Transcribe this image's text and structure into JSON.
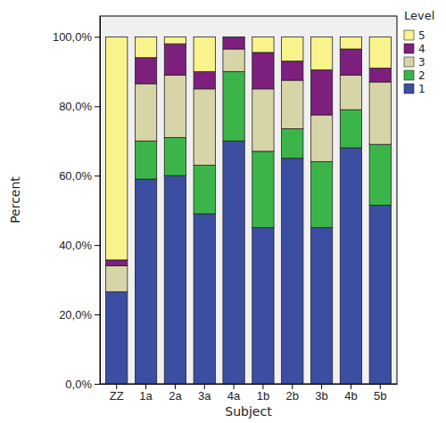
{
  "chart_data": {
    "type": "bar",
    "stacked": true,
    "x_label": "Subject",
    "y_label": "Percent",
    "legend_title": "Level",
    "legend": "right",
    "categories": [
      "ZZ",
      "1a",
      "2a",
      "3a",
      "4a",
      "1b",
      "2b",
      "3b",
      "4b",
      "5b"
    ],
    "series": [
      {
        "name": "1",
        "color": "#3b4ea1",
        "values": [
          26.5,
          59,
          60,
          49,
          70,
          45,
          65,
          45,
          68,
          51.5
        ]
      },
      {
        "name": "2",
        "color": "#3bb54a",
        "values": [
          0,
          11,
          11,
          14,
          20,
          22,
          8.5,
          19,
          11,
          17.5
        ]
      },
      {
        "name": "3",
        "color": "#d7d4a8",
        "values": [
          7.5,
          16.5,
          18,
          22,
          6.5,
          18,
          14,
          13.5,
          10,
          18
        ]
      },
      {
        "name": "4",
        "color": "#7d1f7c",
        "values": [
          1.7,
          7.5,
          9,
          5,
          3.5,
          10.5,
          5.5,
          13,
          7.5,
          4
        ]
      },
      {
        "name": "5",
        "color": "#f8f38b",
        "values": [
          64.3,
          6,
          2,
          10,
          0,
          4.5,
          7,
          9.5,
          3.5,
          9
        ]
      }
    ],
    "ylim": [
      0,
      106
    ],
    "yticks": [
      {
        "value": 0,
        "label": "0,0%"
      },
      {
        "value": 20,
        "label": "20,0%"
      },
      {
        "value": 40,
        "label": "40,0%"
      },
      {
        "value": 60,
        "label": "60,0%"
      },
      {
        "value": 80,
        "label": "80,0%"
      },
      {
        "value": 100,
        "label": "100,0%"
      }
    ]
  }
}
